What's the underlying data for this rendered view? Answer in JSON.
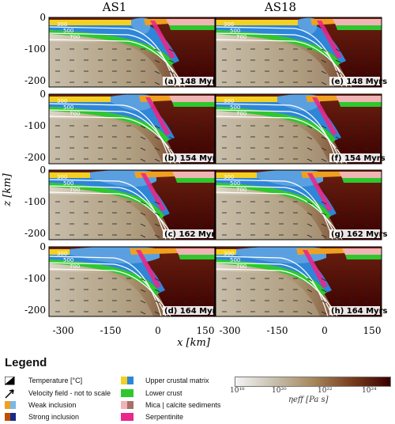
{
  "columns": [
    "AS1",
    "AS18"
  ],
  "y_axis_label": "z [km]",
  "x_axis_label": "x [km]",
  "y_ticks": [
    "0",
    "-100",
    "-200"
  ],
  "x_ticks": [
    "-300",
    "-150",
    "0",
    "150"
  ],
  "panels": [
    {
      "tag": "(a) 148 Myrs"
    },
    {
      "tag": "(e) 148 Myrs"
    },
    {
      "tag": "(b) 154 Myrs"
    },
    {
      "tag": "(f) 154 Myrs"
    },
    {
      "tag": "(c) 162 Myrs"
    },
    {
      "tag": "(g) 162 Myrs"
    },
    {
      "tag": "(d) 164 Myrs"
    },
    {
      "tag": "(h) 164 Myrs"
    }
  ],
  "isotherms": [
    "300",
    "500",
    "700"
  ],
  "legend": {
    "title": "Legend",
    "items": [
      {
        "label": "Temperature [°C]",
        "icon": "temperature-icon"
      },
      {
        "label": "Velocity field - not to scale",
        "icon": "arrow-icon"
      },
      {
        "label": "Weak inclusion",
        "colors": [
          "#f0a020",
          "#7ab8e8"
        ]
      },
      {
        "label": "Strong inclusion",
        "colors": [
          "#c05000",
          "#1a2a8a"
        ]
      },
      {
        "label": "Upper crustal matrix",
        "colors": [
          "#f4d020",
          "#2e86d8"
        ]
      },
      {
        "label": "Lower crust",
        "colors": [
          "#2ec82e"
        ]
      },
      {
        "label": "Mica | calcite sediments",
        "colors": [
          "#f0b4b4",
          "#a8706a"
        ]
      },
      {
        "label": "Serpentinite",
        "colors": [
          "#e8288a"
        ]
      }
    ],
    "colorbar": {
      "ticks": [
        "10¹⁸",
        "10²⁰",
        "10²²",
        "10²⁴"
      ],
      "label": "ηeff [Pa s]"
    }
  }
}
